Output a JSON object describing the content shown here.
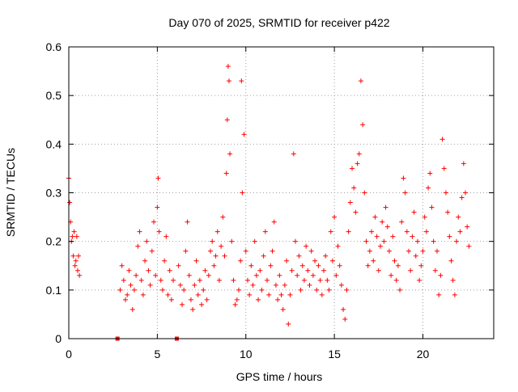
{
  "chart_data": {
    "type": "scatter",
    "title": "Day 070 of 2025, SRMTID for receiver p422",
    "xlabel": "GPS time / hours",
    "ylabel": "SRMTID / TECUs",
    "xlim": [
      0,
      24
    ],
    "ylim": [
      0,
      0.6
    ],
    "x_ticks": [
      0,
      5,
      10,
      15,
      20
    ],
    "y_ticks": [
      0,
      0.1,
      0.2,
      0.3,
      0.4,
      0.5,
      0.6
    ],
    "x_tick_labels": [
      "0",
      "5",
      "10",
      "15",
      "20"
    ],
    "y_tick_labels": [
      "0",
      "0.1",
      "0.2",
      "0.3",
      "0.4",
      "0.5",
      "0.6"
    ],
    "grid": true,
    "marker": "+",
    "series_color": "#ff0000",
    "gap_markers": [
      {
        "x": 2.75,
        "y": 0
      },
      {
        "x": 6.1,
        "y": 0
      }
    ],
    "series": [
      {
        "name": "SRMTID",
        "x": [
          0.0,
          0.05,
          0.1,
          0.15,
          0.2,
          0.25,
          0.3,
          0.35,
          0.4,
          0.45,
          0.5,
          0.55,
          0.6,
          2.9,
          3.0,
          3.1,
          3.2,
          3.3,
          3.4,
          3.5,
          3.6,
          3.7,
          3.8,
          3.9,
          4.0,
          4.1,
          4.2,
          4.3,
          4.4,
          4.5,
          4.6,
          4.7,
          4.8,
          4.9,
          5.0,
          5.05,
          5.1,
          5.2,
          5.3,
          5.4,
          5.5,
          5.6,
          5.7,
          5.8,
          5.9,
          6.2,
          6.3,
          6.4,
          6.5,
          6.6,
          6.7,
          6.8,
          6.9,
          7.0,
          7.1,
          7.2,
          7.3,
          7.4,
          7.5,
          7.6,
          7.7,
          7.8,
          7.9,
          8.0,
          8.1,
          8.2,
          8.3,
          8.4,
          8.5,
          8.6,
          8.7,
          8.8,
          8.9,
          8.95,
          9.0,
          9.05,
          9.1,
          9.2,
          9.3,
          9.4,
          9.5,
          9.6,
          9.7,
          9.75,
          9.8,
          9.9,
          10.0,
          10.1,
          10.2,
          10.3,
          10.4,
          10.5,
          10.6,
          10.7,
          10.8,
          10.9,
          11.0,
          11.1,
          11.2,
          11.3,
          11.4,
          11.5,
          11.6,
          11.7,
          11.8,
          11.9,
          12.0,
          12.1,
          12.2,
          12.3,
          12.4,
          12.5,
          12.6,
          12.7,
          12.8,
          12.9,
          13.0,
          13.1,
          13.2,
          13.3,
          13.4,
          13.5,
          13.6,
          13.7,
          13.8,
          13.9,
          14.0,
          14.1,
          14.2,
          14.3,
          14.4,
          14.5,
          14.6,
          14.7,
          14.8,
          14.9,
          15.0,
          15.1,
          15.2,
          15.3,
          15.4,
          15.5,
          15.6,
          15.7,
          15.8,
          15.9,
          16.0,
          16.1,
          16.2,
          16.3,
          16.4,
          16.5,
          16.6,
          16.7,
          16.8,
          16.9,
          17.0,
          17.1,
          17.2,
          17.3,
          17.4,
          17.5,
          17.6,
          17.7,
          17.8,
          17.9,
          18.0,
          18.1,
          18.2,
          18.3,
          18.4,
          18.5,
          18.6,
          18.7,
          18.8,
          18.9,
          19.0,
          19.1,
          19.2,
          19.3,
          19.4,
          19.5,
          19.6,
          19.7,
          19.8,
          19.9,
          20.0,
          20.1,
          20.2,
          20.3,
          20.4,
          20.5,
          20.6,
          20.7,
          20.8,
          20.9,
          21.0,
          21.1,
          21.2,
          21.3,
          21.4,
          21.5,
          21.6,
          21.7,
          21.8,
          21.9,
          22.0,
          22.1,
          22.2,
          22.3,
          22.4,
          22.5,
          22.6
        ],
        "y": [
          0.33,
          0.28,
          0.24,
          0.2,
          0.21,
          0.17,
          0.22,
          0.15,
          0.16,
          0.21,
          0.14,
          0.17,
          0.13,
          0.1,
          0.15,
          0.12,
          0.08,
          0.09,
          0.14,
          0.11,
          0.06,
          0.1,
          0.13,
          0.19,
          0.22,
          0.12,
          0.09,
          0.16,
          0.2,
          0.14,
          0.11,
          0.18,
          0.24,
          0.13,
          0.27,
          0.33,
          0.22,
          0.12,
          0.1,
          0.16,
          0.21,
          0.09,
          0.14,
          0.08,
          0.12,
          0.15,
          0.11,
          0.07,
          0.1,
          0.18,
          0.24,
          0.13,
          0.08,
          0.06,
          0.11,
          0.16,
          0.09,
          0.12,
          0.07,
          0.1,
          0.14,
          0.08,
          0.13,
          0.18,
          0.2,
          0.15,
          0.17,
          0.22,
          0.12,
          0.19,
          0.25,
          0.17,
          0.34,
          0.45,
          0.56,
          0.53,
          0.38,
          0.2,
          0.12,
          0.07,
          0.08,
          0.1,
          0.16,
          0.53,
          0.3,
          0.42,
          0.18,
          0.12,
          0.09,
          0.15,
          0.11,
          0.2,
          0.13,
          0.08,
          0.14,
          0.1,
          0.17,
          0.22,
          0.12,
          0.09,
          0.15,
          0.18,
          0.24,
          0.11,
          0.08,
          0.13,
          0.09,
          0.06,
          0.11,
          0.16,
          0.03,
          0.09,
          0.14,
          0.38,
          0.2,
          0.13,
          0.17,
          0.1,
          0.15,
          0.12,
          0.19,
          0.14,
          0.11,
          0.18,
          0.13,
          0.16,
          0.1,
          0.15,
          0.12,
          0.09,
          0.14,
          0.17,
          0.12,
          0.1,
          0.22,
          0.16,
          0.25,
          0.13,
          0.19,
          0.15,
          0.11,
          0.06,
          0.04,
          0.1,
          0.22,
          0.28,
          0.35,
          0.31,
          0.26,
          0.36,
          0.38,
          0.53,
          0.44,
          0.3,
          0.2,
          0.15,
          0.18,
          0.22,
          0.16,
          0.25,
          0.21,
          0.14,
          0.19,
          0.24,
          0.2,
          0.27,
          0.23,
          0.18,
          0.13,
          0.21,
          0.16,
          0.12,
          0.15,
          0.1,
          0.24,
          0.33,
          0.3,
          0.22,
          0.18,
          0.14,
          0.21,
          0.26,
          0.17,
          0.2,
          0.12,
          0.15,
          0.18,
          0.25,
          0.22,
          0.31,
          0.34,
          0.27,
          0.2,
          0.14,
          0.18,
          0.09,
          0.13,
          0.41,
          0.35,
          0.3,
          0.26,
          0.21,
          0.16,
          0.12,
          0.09,
          0.2,
          0.25,
          0.22,
          0.29,
          0.36,
          0.3,
          0.23,
          0.19
        ]
      }
    ]
  }
}
